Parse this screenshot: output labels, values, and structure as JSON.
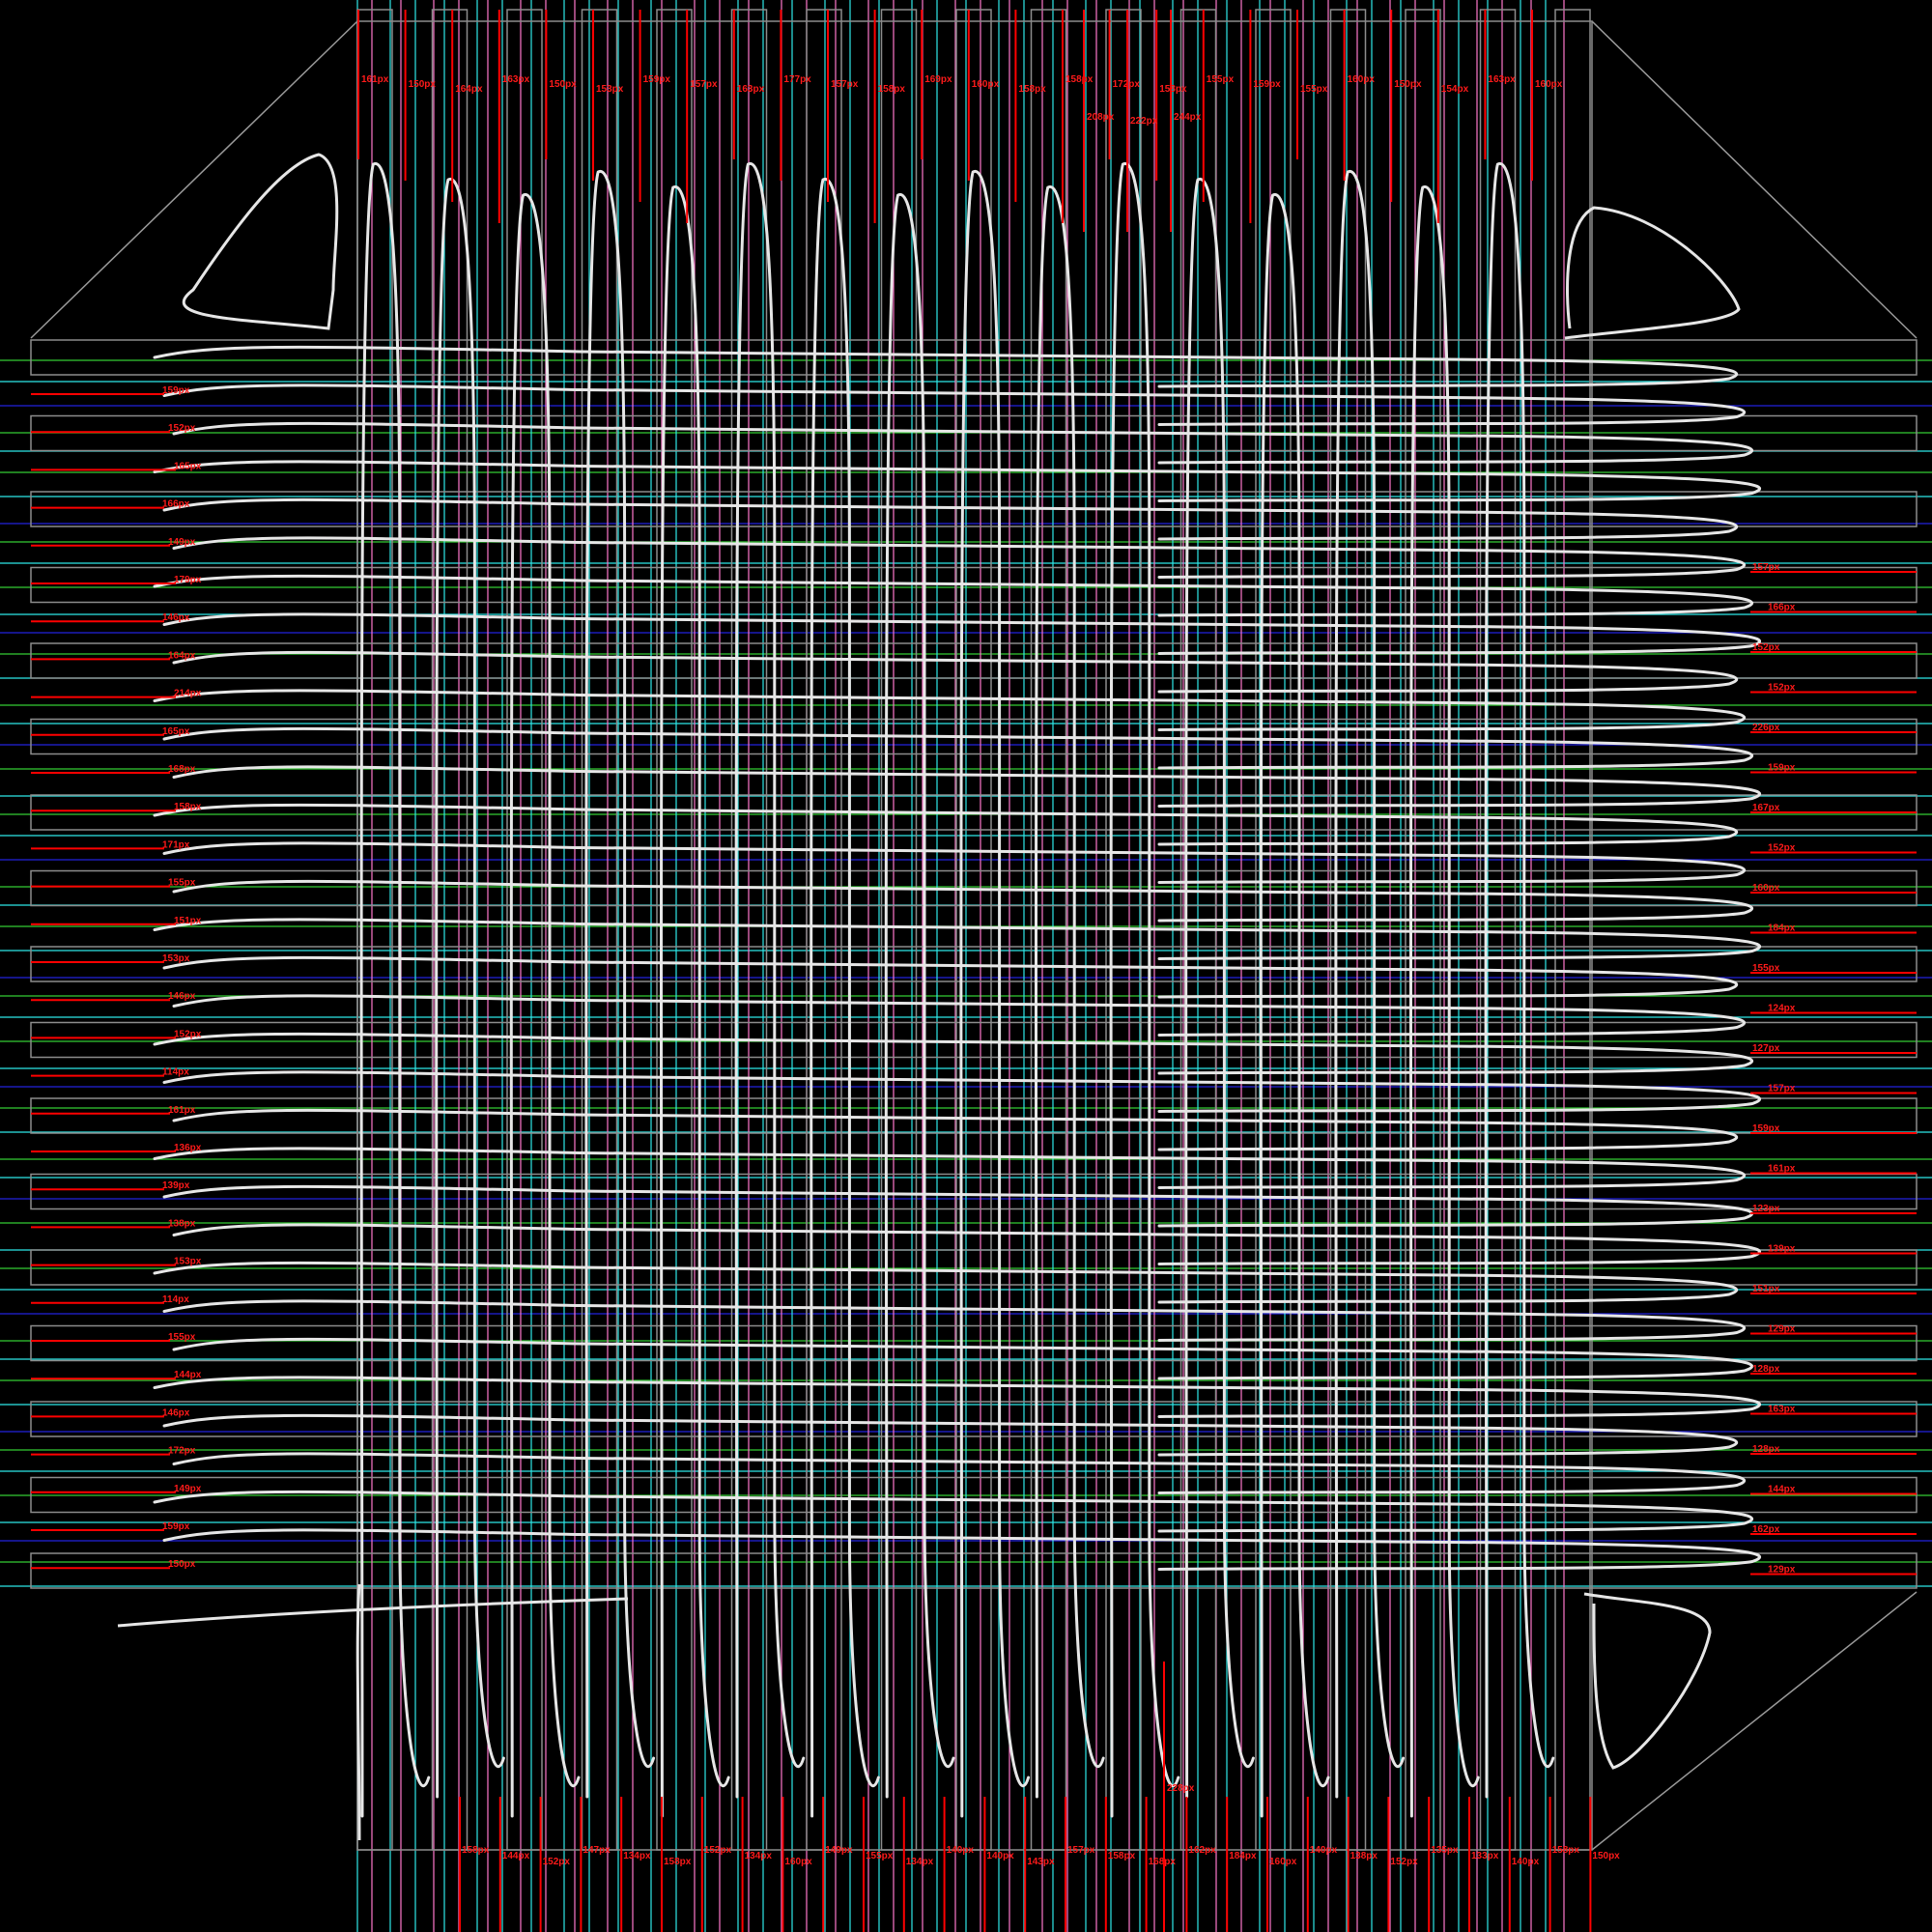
{
  "colors": {
    "background": "#000000",
    "frame": "#8c8c8c",
    "frame_diagonal": "#9a9a9a",
    "loop_path": "#e6e6e6",
    "measure_line": "#ff0000",
    "measure_text": "#ff1a1a",
    "guide_green": "#33cc33",
    "guide_blue": "#2222dd",
    "guide_cyan": "#2ee8e8",
    "guide_pink": "#ff77cc"
  },
  "labels": {
    "top": [
      "161px",
      "150px",
      "164px",
      "163px",
      "150px",
      "153px",
      "159px",
      "157px",
      "163px",
      "177px",
      "157px",
      "158px",
      "169px",
      "160px",
      "158px",
      "158px",
      "172px",
      "158px",
      "155px",
      "159px",
      "155px",
      "160px",
      "150px",
      "154px",
      "163px",
      "160px"
    ],
    "top_mid": [
      "208px",
      "222px",
      "244px"
    ],
    "left": [
      "159px",
      "152px",
      "165px",
      "166px",
      "149px",
      "179px",
      "146px",
      "164px",
      "214px",
      "165px",
      "168px",
      "158px",
      "171px",
      "155px",
      "151px",
      "153px",
      "146px",
      "152px",
      "114px",
      "161px",
      "136px",
      "139px",
      "138px",
      "153px",
      "114px",
      "155px",
      "144px",
      "146px",
      "172px",
      "149px",
      "159px",
      "150px"
    ],
    "right": [
      "157px",
      "166px",
      "152px",
      "152px",
      "226px",
      "159px",
      "167px",
      "152px",
      "160px",
      "184px",
      "155px",
      "124px",
      "127px",
      "157px",
      "159px",
      "161px",
      "123px",
      "139px",
      "151px",
      "129px",
      "128px",
      "163px",
      "128px",
      "144px",
      "162px",
      "129px"
    ],
    "bottom": [
      "158px",
      "144px",
      "152px",
      "147px",
      "134px",
      "158px",
      "152px",
      "134px",
      "160px",
      "149px",
      "155px",
      "134px",
      "140px",
      "140px",
      "143px",
      "157px",
      "158px",
      "168px",
      "162px",
      "184px",
      "160px",
      "140px",
      "138px",
      "152px",
      "135px",
      "133px",
      "140px",
      "158px",
      "150px"
    ],
    "bottom_mid": [
      "228px"
    ]
  }
}
